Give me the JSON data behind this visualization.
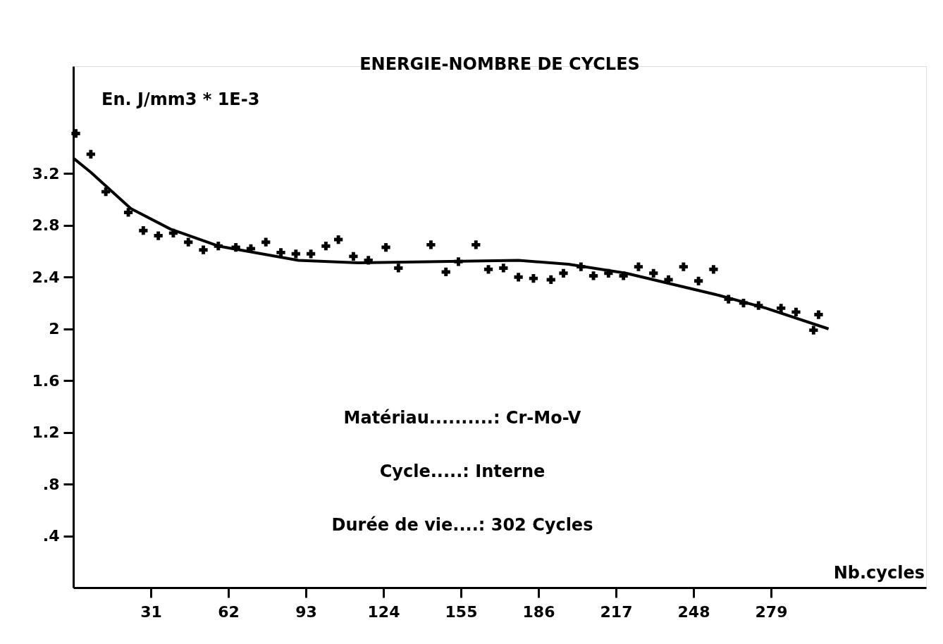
{
  "chart_data": {
    "type": "scatter",
    "title": "ENERGIE-NOMBRE DE CYCLES",
    "ylabel": "En. J/mm3 * 1E-3",
    "xlabel": "Nb.cycles",
    "annotations": [
      "Matériau..........: Cr-Mo-V",
      "Cycle.....: Interne",
      "Durée de vie....: 302 Cycles"
    ],
    "xlim": [
      0,
      341
    ],
    "ylim": [
      0,
      4.03
    ],
    "xticks": [
      31,
      62,
      93,
      124,
      155,
      186,
      217,
      248,
      279
    ],
    "yticks": [
      {
        "value": 0.4,
        "label": ".4"
      },
      {
        "value": 0.8,
        "label": ".8"
      },
      1.2,
      1.6,
      2,
      2.4,
      2.8,
      3.2
    ],
    "grid": false,
    "marker": "cross",
    "line_style": "solid",
    "series": [
      {
        "color": "#000000",
        "x": [
          1,
          7,
          13,
          22,
          28,
          34,
          40,
          46,
          52,
          58,
          65,
          71,
          77,
          83,
          89,
          95,
          101,
          106,
          112,
          118,
          125,
          130,
          143,
          149,
          154,
          161,
          166,
          172,
          178,
          184,
          191,
          196,
          203,
          208,
          214,
          220,
          226,
          232,
          238,
          244,
          250,
          256,
          262,
          268,
          274,
          283,
          289,
          296,
          298
        ],
        "values": [
          3.51,
          3.35,
          3.06,
          2.9,
          2.76,
          2.72,
          2.74,
          2.67,
          2.61,
          2.64,
          2.63,
          2.62,
          2.67,
          2.59,
          2.58,
          2.58,
          2.64,
          2.69,
          2.56,
          2.53,
          2.63,
          2.47,
          2.65,
          2.44,
          2.52,
          2.65,
          2.46,
          2.47,
          2.4,
          2.39,
          2.38,
          2.43,
          2.48,
          2.41,
          2.43,
          2.41,
          2.48,
          2.43,
          2.38,
          2.48,
          2.37,
          2.46,
          2.23,
          2.2,
          2.18,
          2.16,
          2.13,
          1.99,
          2.11
        ]
      },
      {
        "type": "line",
        "marker": "none",
        "color": "#000000",
        "x": [
          0,
          7,
          23,
          39,
          58,
          90,
          114,
          178,
          198,
          221,
          258,
          277,
          302
        ],
        "values": [
          3.32,
          3.21,
          2.93,
          2.77,
          2.64,
          2.53,
          2.51,
          2.53,
          2.5,
          2.43,
          2.26,
          2.16,
          2.0
        ]
      }
    ]
  }
}
